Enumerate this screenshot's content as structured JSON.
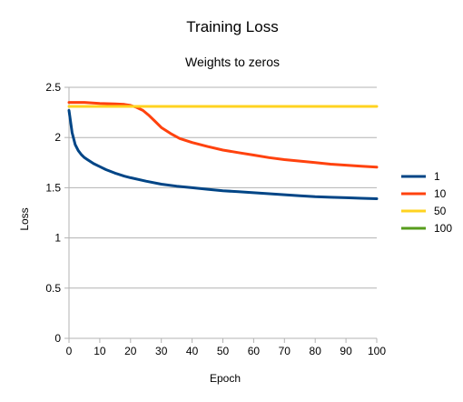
{
  "chart_data": {
    "type": "line",
    "title": "Training Loss",
    "subtitle": "Weights to zeros",
    "xlabel": "Epoch",
    "ylabel": "Loss",
    "xlim": [
      0,
      100
    ],
    "ylim": [
      0,
      2.5
    ],
    "x_ticks": [
      0,
      10,
      20,
      30,
      40,
      50,
      60,
      70,
      80,
      90,
      100
    ],
    "y_ticks": [
      0,
      0.5,
      1,
      1.5,
      2,
      2.5
    ],
    "y_tick_labels": [
      "0",
      "0.5",
      "1",
      "1.5",
      "2",
      "2.5"
    ],
    "grid": true,
    "legend_position": "right",
    "series": [
      {
        "name": "1",
        "color": "#004586",
        "points": [
          [
            0,
            2.27
          ],
          [
            1,
            2.05
          ],
          [
            2,
            1.93
          ],
          [
            3,
            1.87
          ],
          [
            4,
            1.83
          ],
          [
            5,
            1.8
          ],
          [
            6,
            1.78
          ],
          [
            8,
            1.74
          ],
          [
            10,
            1.71
          ],
          [
            12,
            1.68
          ],
          [
            15,
            1.645
          ],
          [
            18,
            1.615
          ],
          [
            20,
            1.6
          ],
          [
            25,
            1.565
          ],
          [
            30,
            1.535
          ],
          [
            35,
            1.515
          ],
          [
            40,
            1.5
          ],
          [
            45,
            1.485
          ],
          [
            50,
            1.47
          ],
          [
            55,
            1.46
          ],
          [
            60,
            1.45
          ],
          [
            65,
            1.44
          ],
          [
            70,
            1.43
          ],
          [
            75,
            1.42
          ],
          [
            80,
            1.41
          ],
          [
            85,
            1.405
          ],
          [
            90,
            1.4
          ],
          [
            95,
            1.395
          ],
          [
            100,
            1.39
          ]
        ]
      },
      {
        "name": "10",
        "color": "#ff420e",
        "points": [
          [
            0,
            2.35
          ],
          [
            5,
            2.35
          ],
          [
            10,
            2.34
          ],
          [
            15,
            2.335
          ],
          [
            18,
            2.33
          ],
          [
            20,
            2.32
          ],
          [
            22,
            2.3
          ],
          [
            24,
            2.27
          ],
          [
            26,
            2.22
          ],
          [
            28,
            2.16
          ],
          [
            30,
            2.1
          ],
          [
            33,
            2.04
          ],
          [
            36,
            1.99
          ],
          [
            40,
            1.95
          ],
          [
            45,
            1.91
          ],
          [
            50,
            1.875
          ],
          [
            55,
            1.85
          ],
          [
            60,
            1.825
          ],
          [
            65,
            1.8
          ],
          [
            70,
            1.78
          ],
          [
            75,
            1.765
          ],
          [
            80,
            1.75
          ],
          [
            85,
            1.735
          ],
          [
            90,
            1.725
          ],
          [
            95,
            1.715
          ],
          [
            100,
            1.705
          ]
        ]
      },
      {
        "name": "50",
        "color": "#ffd320",
        "points": [
          [
            0,
            2.31
          ],
          [
            100,
            2.31
          ]
        ]
      },
      {
        "name": "100",
        "color": "#579d1c",
        "points": []
      }
    ]
  }
}
